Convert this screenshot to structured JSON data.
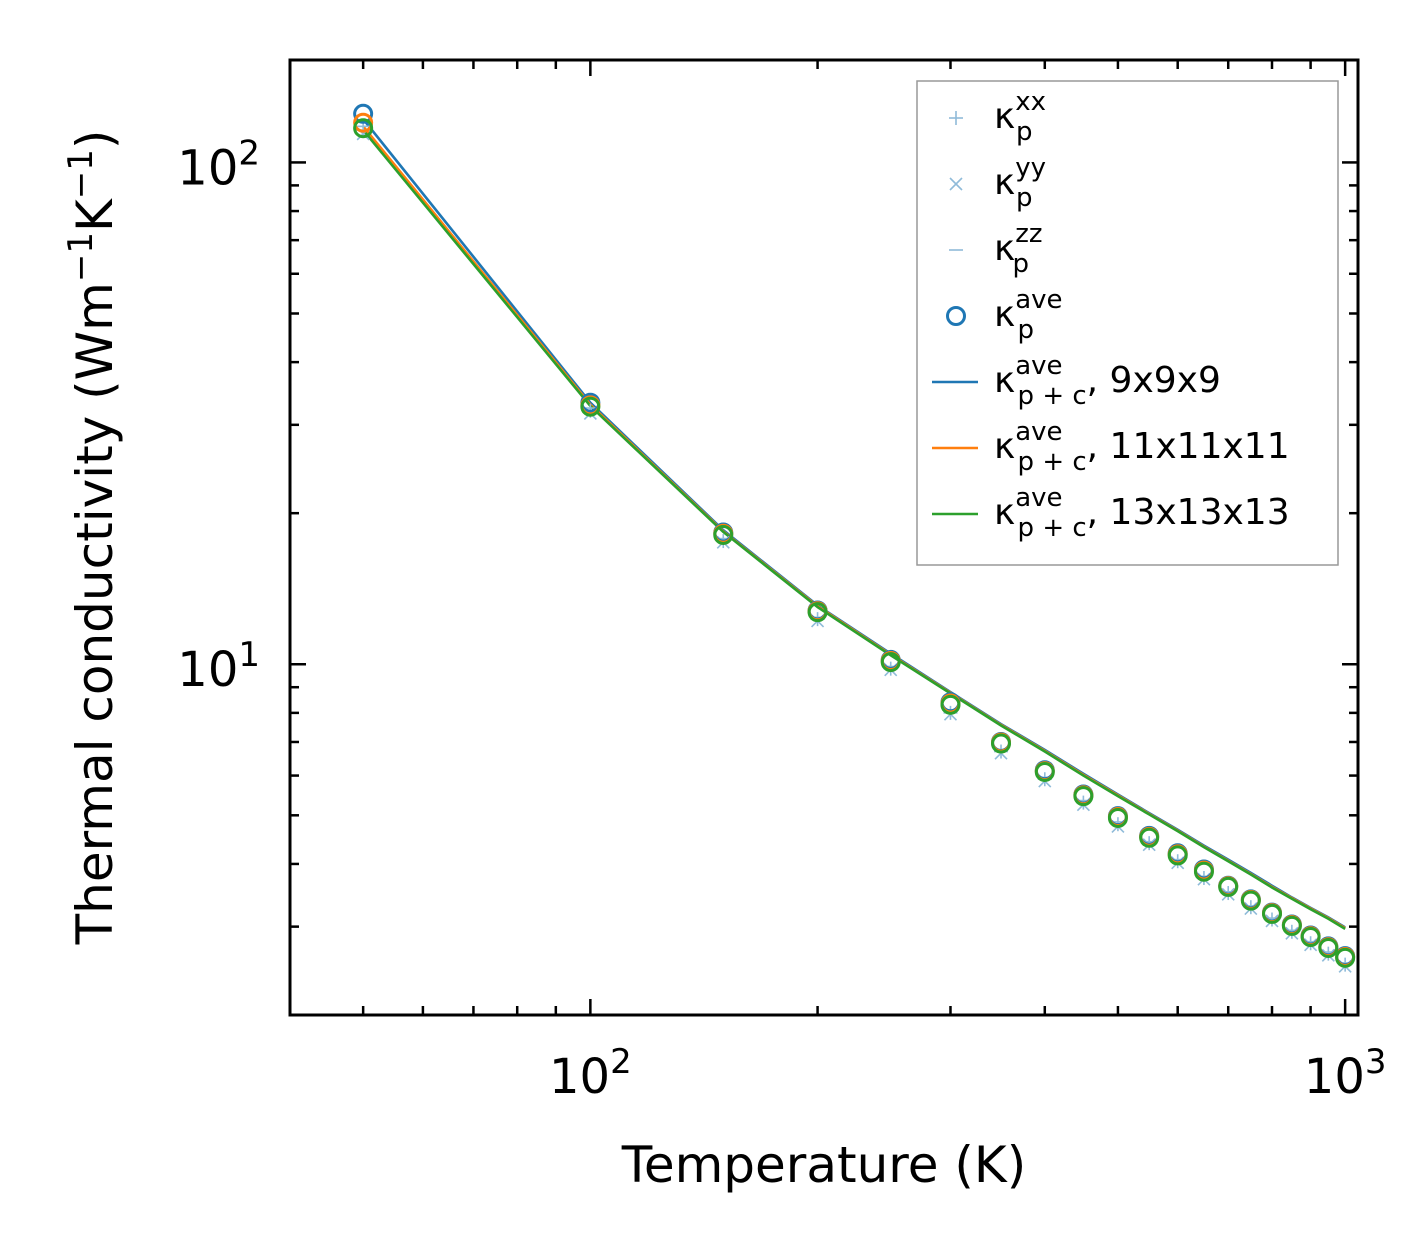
{
  "chart_data": {
    "type": "line",
    "scale": "log-log",
    "xlabel": "Temperature (K)",
    "ylabel": "Thermal conductivity (Wm",
    "ylabel_exp1": "−1",
    "ylabel_mid": "K",
    "ylabel_exp2": "−1",
    "ylabel_end": ")",
    "xlim": [
      40,
      1040
    ],
    "ylim": [
      2.0,
      160
    ],
    "x_ticks": [
      {
        "base": "10",
        "exp": "2",
        "value": 100
      },
      {
        "base": "10",
        "exp": "3",
        "value": 1000
      }
    ],
    "y_ticks": [
      {
        "base": "10",
        "exp": "1",
        "value": 10
      },
      {
        "base": "10",
        "exp": "2",
        "value": 100
      }
    ],
    "x": [
      50,
      100,
      150,
      200,
      250,
      300,
      350,
      400,
      450,
      500,
      550,
      600,
      650,
      700,
      750,
      800,
      850,
      900,
      950,
      1000
    ],
    "markers": [
      {
        "name": "kxx",
        "symbol": "κ",
        "sub": "p",
        "sup": "xx",
        "marker": "plus",
        "color": "#8fbbd9",
        "values": [
          116,
          32.0,
          17.6,
          12.3,
          9.8,
          8.0,
          6.7,
          5.9,
          5.3,
          4.8,
          4.4,
          4.05,
          3.75,
          3.5,
          3.28,
          3.1,
          2.93,
          2.78,
          2.65,
          2.52
        ]
      },
      {
        "name": "kyy",
        "symbol": "κ",
        "sub": "p",
        "sup": "yy",
        "marker": "x",
        "color": "#8fbbd9",
        "values": [
          114,
          31.6,
          17.5,
          12.2,
          9.75,
          7.95,
          6.65,
          5.85,
          5.25,
          4.75,
          4.37,
          4.02,
          3.73,
          3.48,
          3.26,
          3.08,
          2.91,
          2.76,
          2.63,
          2.5
        ]
      },
      {
        "name": "kzz",
        "symbol": "κ",
        "sub": "p",
        "sup": "zz",
        "marker": "dash",
        "color": "#8fbbd9",
        "values": [
          118,
          32.4,
          17.8,
          12.4,
          9.9,
          8.1,
          6.75,
          5.95,
          5.35,
          4.85,
          4.43,
          4.08,
          3.78,
          3.52,
          3.3,
          3.12,
          2.95,
          2.8,
          2.67,
          2.54
        ]
      },
      {
        "name": "kave",
        "symbol": "κ",
        "sub": "p",
        "sup": "ave",
        "marker": "circle",
        "color": "#1f77b4",
        "values": [
          125,
          33.2,
          18.3,
          12.8,
          10.2,
          8.4,
          7.0,
          6.15,
          5.5,
          4.98,
          4.55,
          4.2,
          3.9,
          3.62,
          3.4,
          3.2,
          3.03,
          2.88,
          2.74,
          2.62
        ]
      },
      {
        "name": "kave-orange",
        "symbol": "",
        "sub": "",
        "sup": "",
        "marker": "circle-noleg",
        "color": "#ff7f0e",
        "values": [
          120,
          32.8,
          18.2,
          12.75,
          10.15,
          8.35,
          6.98,
          6.12,
          5.48,
          4.96,
          4.53,
          4.18,
          3.88,
          3.61,
          3.39,
          3.19,
          3.02,
          2.87,
          2.73,
          2.61
        ]
      },
      {
        "name": "kave-green",
        "symbol": "",
        "sub": "",
        "sup": "",
        "marker": "circle-noleg",
        "color": "#2ca02c",
        "values": [
          117,
          32.6,
          18.1,
          12.7,
          10.1,
          8.3,
          6.95,
          6.1,
          5.46,
          4.94,
          4.51,
          4.16,
          3.86,
          3.6,
          3.38,
          3.18,
          3.01,
          2.86,
          2.72,
          2.6
        ]
      }
    ],
    "series": [
      {
        "name": "9x9x9",
        "symbol": "κ",
        "sub": "p + c",
        "sup": "ave",
        "suffix": ", 9x9x9",
        "color": "#1f77b4",
        "values": [
          122,
          33.2,
          18.5,
          13.1,
          10.5,
          8.8,
          7.6,
          6.75,
          6.05,
          5.5,
          5.05,
          4.68,
          4.35,
          4.08,
          3.84,
          3.62,
          3.43,
          3.27,
          3.13,
          2.99
        ]
      },
      {
        "name": "11x11x11",
        "symbol": "κ",
        "sub": "p + c",
        "sup": "ave",
        "suffix": ", 11x11x11",
        "color": "#ff7f0e",
        "values": [
          118,
          32.9,
          18.4,
          13.05,
          10.45,
          8.77,
          7.57,
          6.72,
          6.02,
          5.48,
          5.03,
          4.66,
          4.33,
          4.06,
          3.82,
          3.6,
          3.42,
          3.26,
          3.12,
          2.98
        ]
      },
      {
        "name": "13x13x13",
        "symbol": "κ",
        "sub": "p + c",
        "sup": "ave",
        "suffix": ", 13x13x13",
        "color": "#2ca02c",
        "values": [
          116,
          32.7,
          18.35,
          13.0,
          10.42,
          8.75,
          7.55,
          6.7,
          6.0,
          5.46,
          5.02,
          4.65,
          4.32,
          4.05,
          3.81,
          3.59,
          3.41,
          3.25,
          3.11,
          2.97
        ]
      }
    ]
  }
}
